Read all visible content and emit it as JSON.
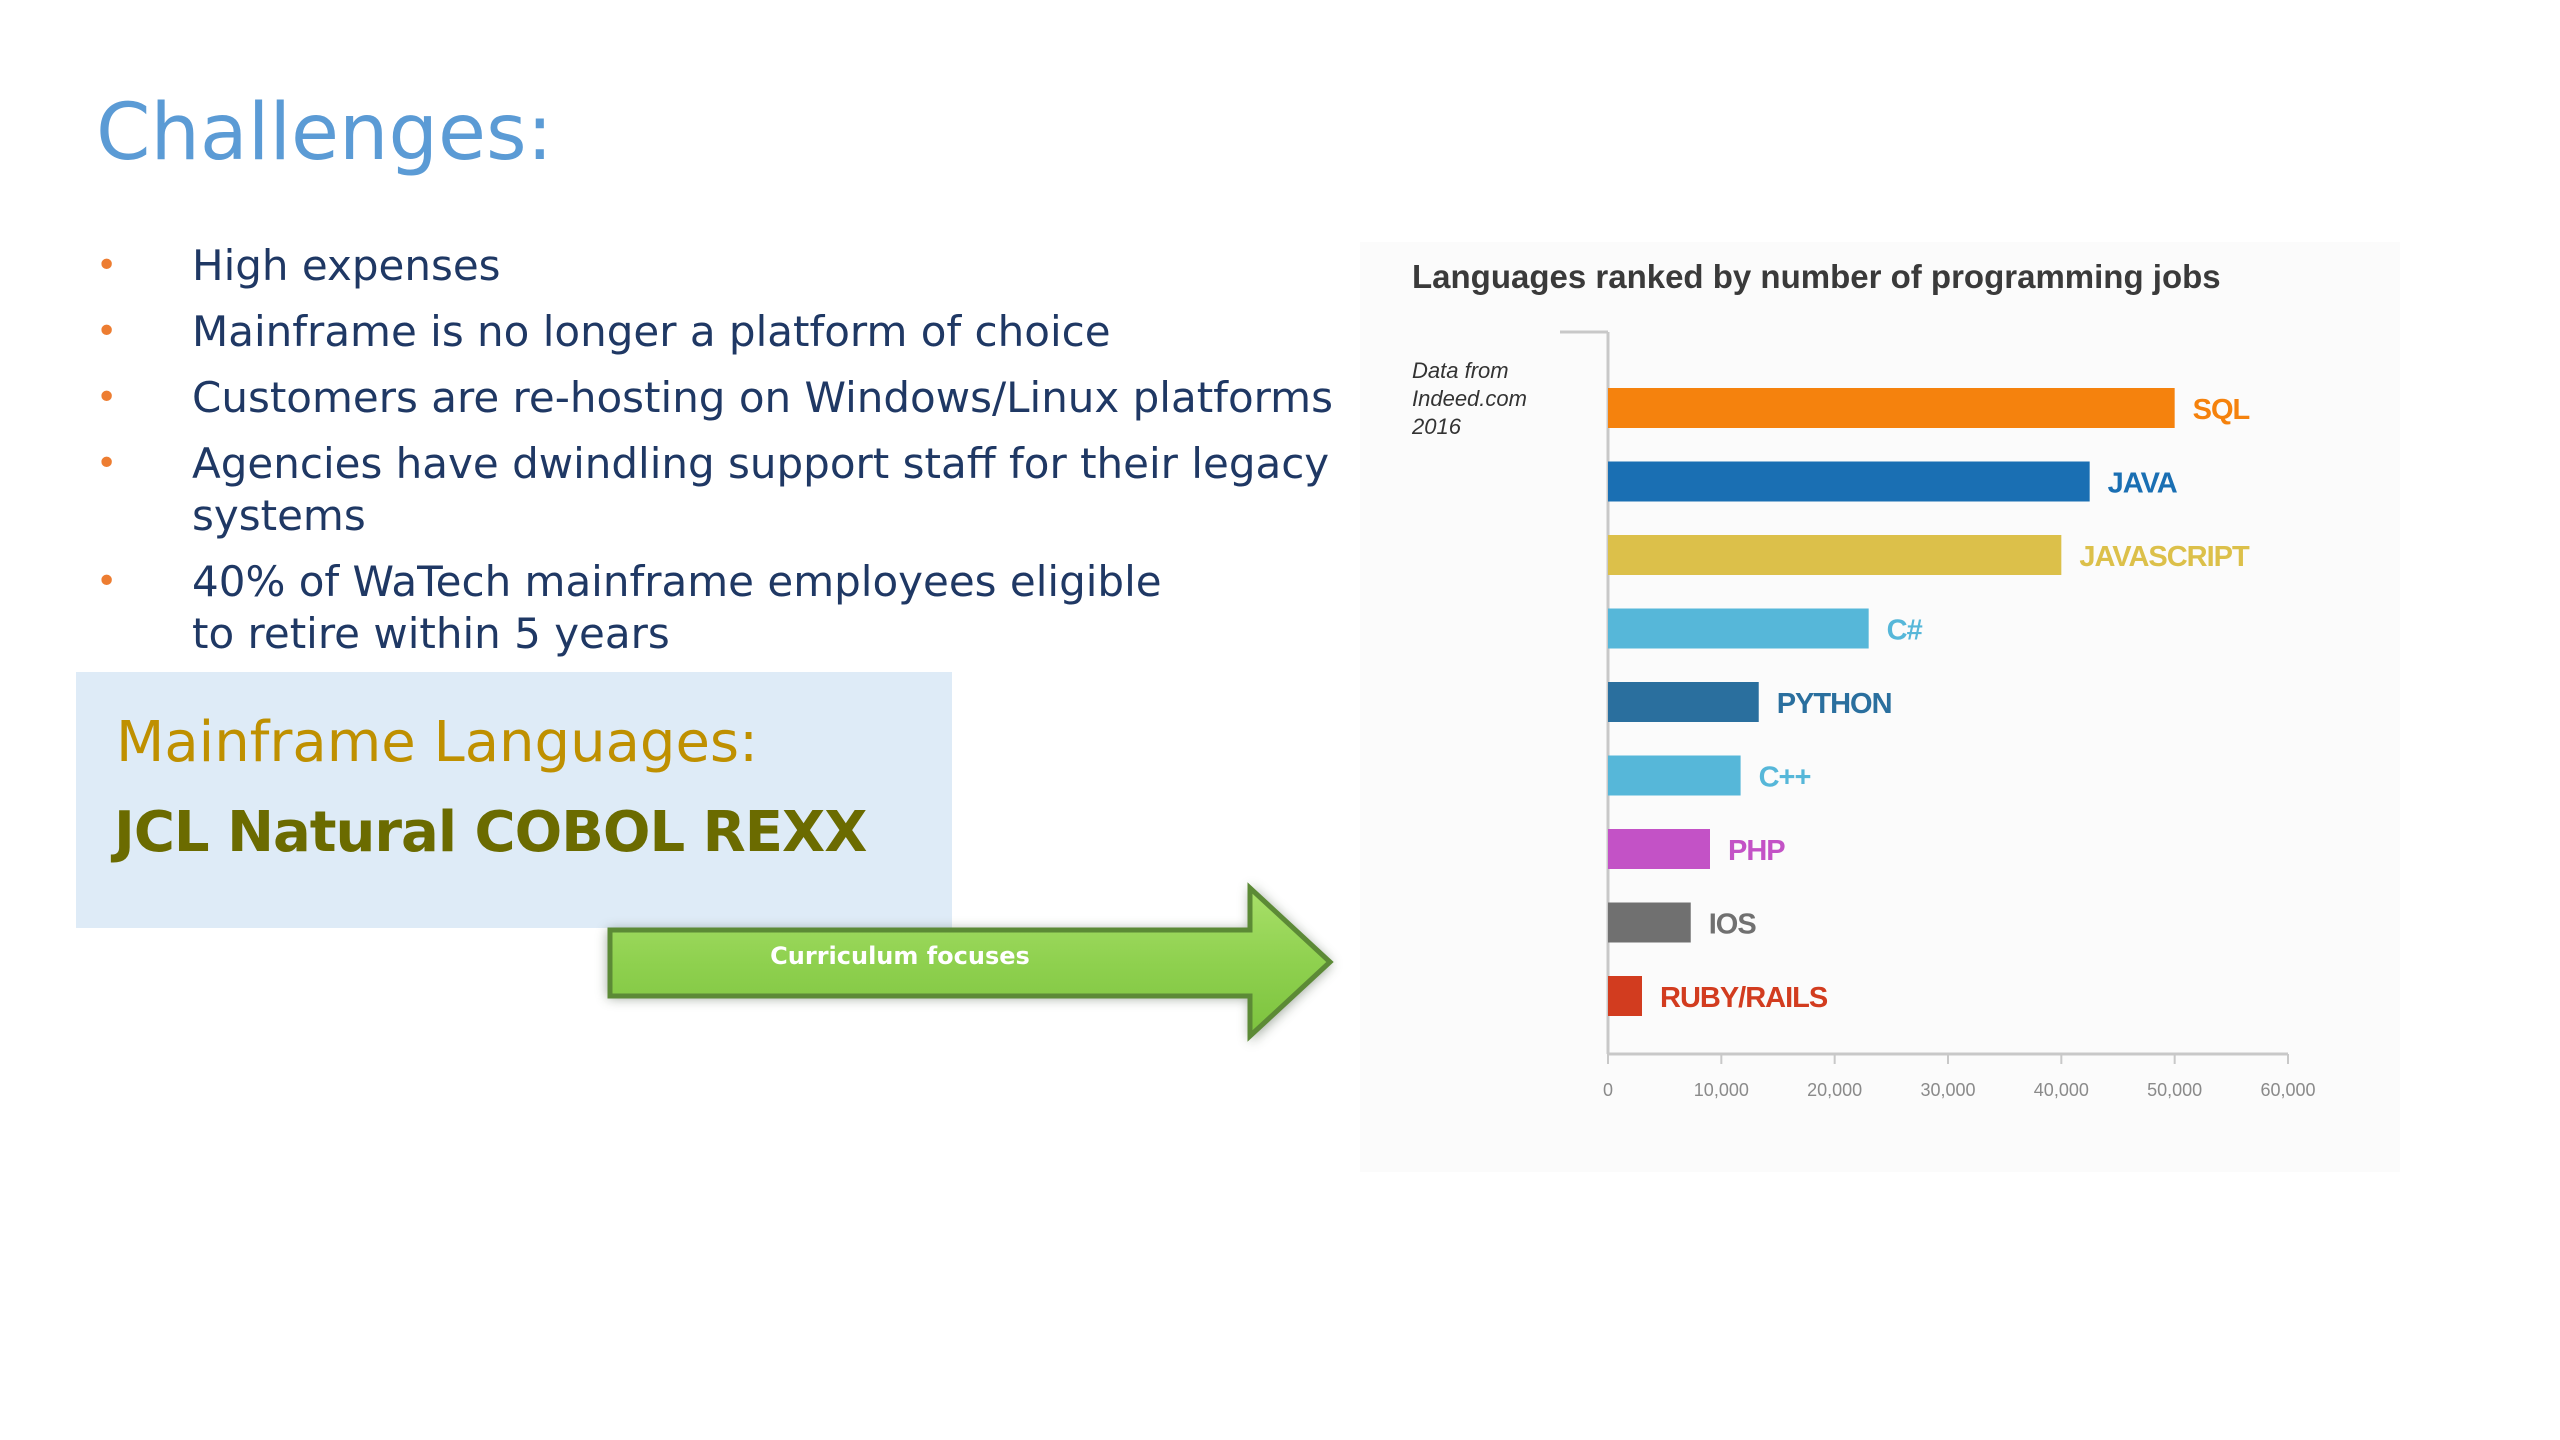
{
  "slide": {
    "title": "Challenges:",
    "bullets": [
      "High expenses",
      "Mainframe is no longer a platform of choice",
      "Customers are re-hosting on Windows/Linux platforms",
      "Agencies have dwindling support staff for their legacy systems",
      "40% of WaTech mainframe employees eligible to retire within 5 years"
    ],
    "bullet_glyph": "•"
  },
  "languages_box": {
    "title": "Mainframe Languages:",
    "list": "JCL Natural COBOL REXX"
  },
  "arrow": {
    "label": "Curriculum focuses",
    "color": "#92d050"
  },
  "chart_data": {
    "type": "bar",
    "orientation": "horizontal",
    "title": "Languages ranked by number of programming jobs",
    "source_note": [
      "Data from",
      "Indeed.com",
      "2016"
    ],
    "categories": [
      "SQL",
      "JAVA",
      "JAVASCRIPT",
      "C#",
      "PYTHON",
      "C++",
      "PHP",
      "IOS",
      "RUBY/RAILS"
    ],
    "values": [
      50000,
      42500,
      40000,
      23000,
      13300,
      11700,
      9000,
      7300,
      3000
    ],
    "colors": [
      "#f5820d",
      "#1a6fb3",
      "#dcc04a",
      "#56b7d9",
      "#2a6f9e",
      "#56b7d9",
      "#c352c6",
      "#707070",
      "#d23c1f"
    ],
    "xlim": [
      0,
      60000
    ],
    "xticks": [
      0,
      10000,
      20000,
      30000,
      40000,
      50000,
      60000
    ],
    "xtick_labels": [
      "0",
      "10,000",
      "20,000",
      "30,000",
      "40,000",
      "50,000",
      "60,000"
    ],
    "xlabel": "",
    "ylabel": "",
    "grid": false,
    "legend": "none"
  }
}
